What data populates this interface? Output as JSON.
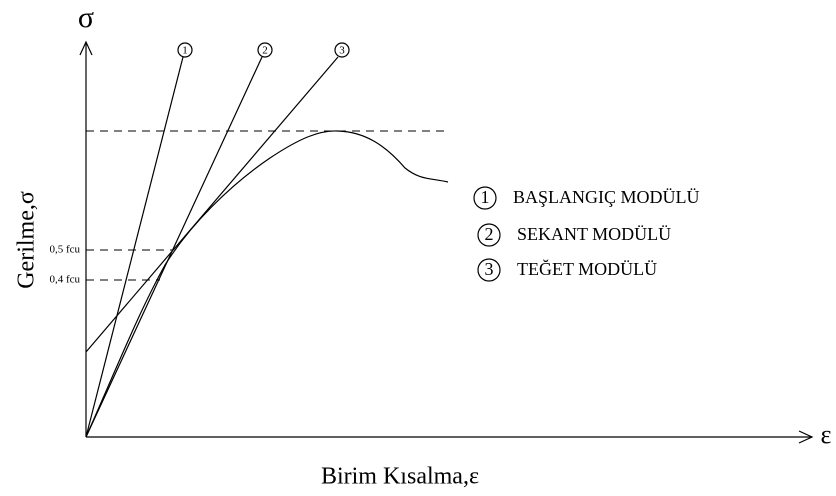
{
  "axes": {
    "y_symbol": "σ",
    "x_symbol": "ε",
    "y_label": "Gerilme,σ",
    "x_label": "Birim Kısalma,ε"
  },
  "levels": [
    {
      "label": "0,5 fcu"
    },
    {
      "label": "0,4 fcu"
    }
  ],
  "line_tags": [
    "1",
    "2",
    "3"
  ],
  "legend": [
    {
      "number": "1",
      "text": "BAŞLANGIÇ MODÜLÜ"
    },
    {
      "number": "2",
      "text": "SEKANT MODÜLÜ"
    },
    {
      "number": "3",
      "text": "TEĞET MODÜLÜ"
    }
  ]
}
